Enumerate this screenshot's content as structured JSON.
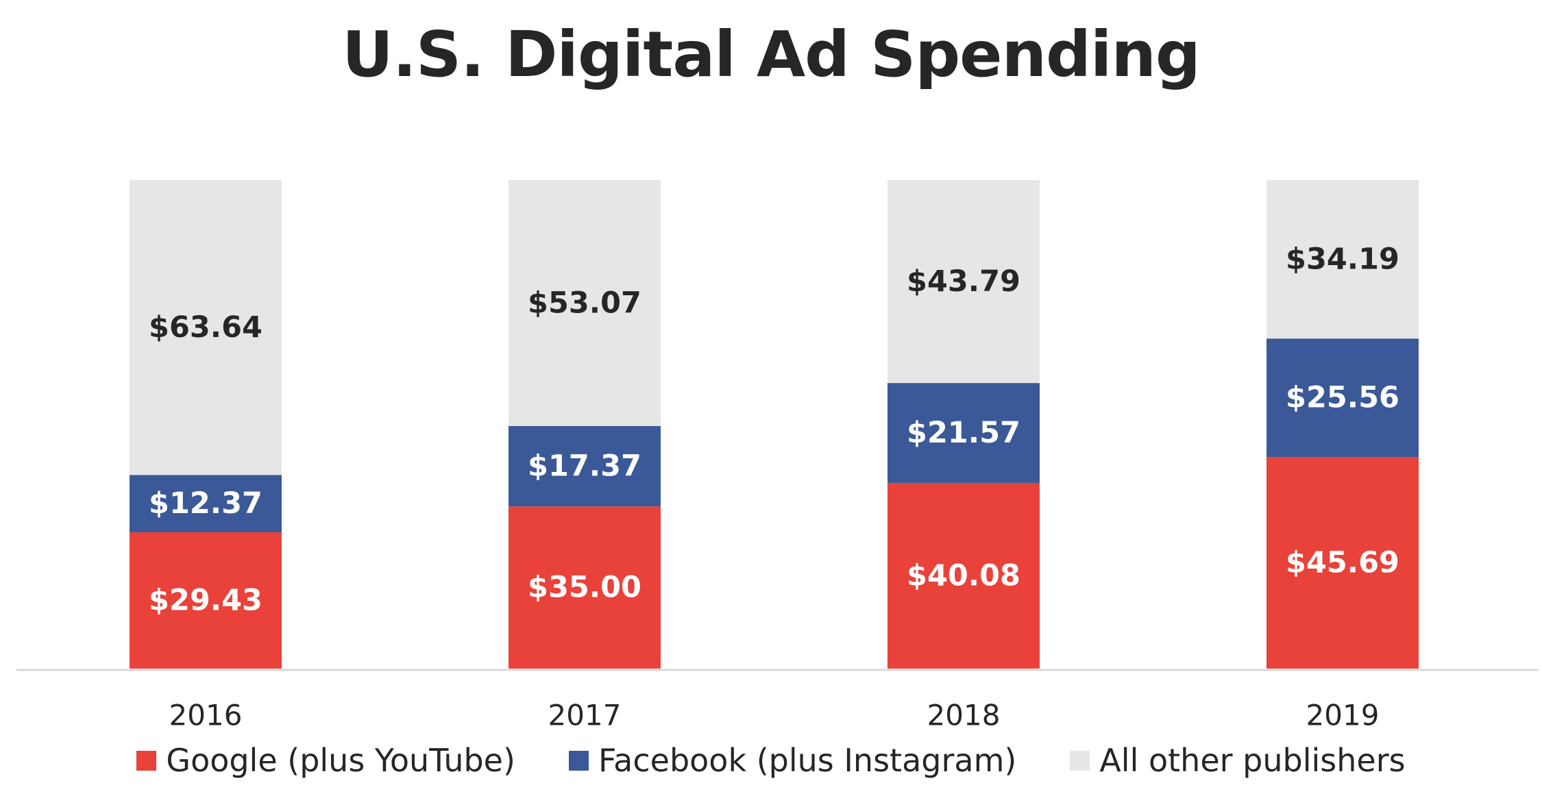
{
  "colors": {
    "google": "#E9423A",
    "facebook": "#3B5998",
    "other": "#E6E6E6",
    "label_light": "#FFFFFF",
    "label_dark": "#262626",
    "axis": "#D9D9D9"
  },
  "chart_data": {
    "type": "bar",
    "stacked": true,
    "title": "U.S. Digital Ad Spending",
    "xlabel": "",
    "ylabel": "",
    "categories": [
      "2016",
      "2017",
      "2018",
      "2019"
    ],
    "series": [
      {
        "name": "Google (plus YouTube)",
        "values": [
          29.43,
          35.0,
          40.08,
          45.69
        ],
        "labels": [
          "$29.43",
          "$35.00",
          "$40.08",
          "$45.69"
        ]
      },
      {
        "name": "Facebook (plus Instagram)",
        "values": [
          12.37,
          17.37,
          21.57,
          25.56
        ],
        "labels": [
          "$12.37",
          "$17.37",
          "$21.57",
          "$25.56"
        ]
      },
      {
        "name": "All other publishers",
        "values": [
          63.64,
          53.07,
          43.79,
          34.19
        ],
        "labels": [
          "$63.64",
          "$53.07",
          "$43.79",
          "$34.19"
        ]
      }
    ],
    "ylim": [
      0,
      105.44
    ],
    "grid": false,
    "legend_position": "bottom"
  }
}
